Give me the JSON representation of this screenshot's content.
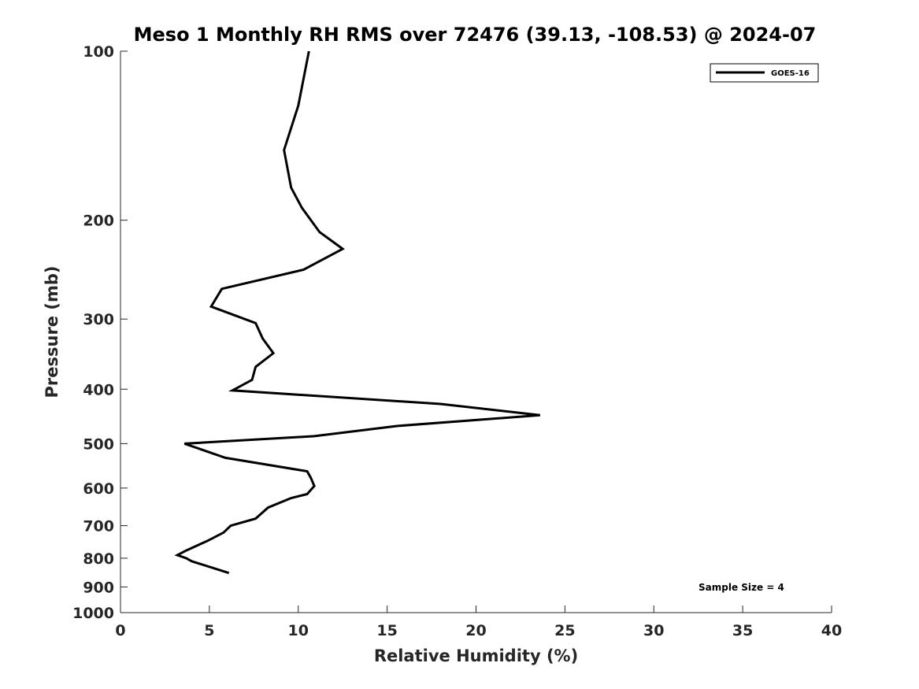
{
  "chart_data": {
    "type": "line",
    "title": "Meso 1 Monthly RH RMS over 72476 (39.13, -108.53) @ 2024-07",
    "xlabel": "Relative Humidity (%)",
    "ylabel": "Pressure (mb)",
    "xlim": [
      0,
      40
    ],
    "ylim": [
      100,
      1000
    ],
    "yscale": "log",
    "y_reversed": true,
    "xticks": [
      0,
      5,
      10,
      15,
      20,
      25,
      30,
      35,
      40
    ],
    "xtick_labels": [
      "0",
      "5",
      "10",
      "15",
      "20",
      "25",
      "30",
      "35",
      "40"
    ],
    "yticks": [
      100,
      200,
      300,
      400,
      500,
      600,
      700,
      800,
      900,
      1000
    ],
    "ytick_labels": [
      "100",
      "200",
      "300",
      "400",
      "500",
      "600",
      "700",
      "800",
      "900",
      "1000"
    ],
    "grid": false,
    "legend_position": "top-right",
    "annotation": "Sample Size = 4",
    "series": [
      {
        "name": "GOES-16",
        "color": "#000000",
        "x": [
          10.6,
          10.0,
          9.2,
          9.6,
          10.2,
          11.2,
          12.5,
          10.3,
          5.7,
          5.1,
          7.6,
          8.0,
          8.6,
          7.6,
          7.4,
          6.3,
          18.0,
          23.6,
          15.6,
          10.9,
          3.6,
          5.9,
          10.5,
          10.7,
          10.9,
          10.5,
          9.6,
          8.3,
          7.6,
          6.2,
          5.8,
          4.9,
          3.7,
          3.2,
          3.7,
          4.0,
          6.1
        ],
        "y": [
          100,
          125,
          150,
          175,
          190,
          210,
          225,
          245,
          265,
          285,
          305,
          325,
          345,
          365,
          385,
          402,
          425,
          445,
          465,
          485,
          500,
          530,
          560,
          575,
          595,
          615,
          625,
          650,
          680,
          700,
          720,
          745,
          775,
          790,
          800,
          810,
          850
        ]
      }
    ]
  }
}
